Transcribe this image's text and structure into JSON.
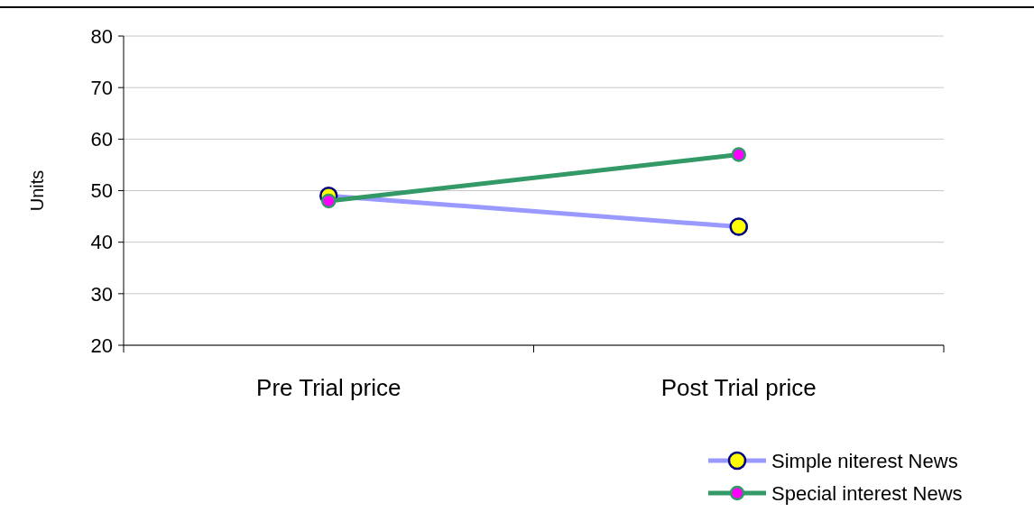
{
  "chart_data": {
    "type": "line",
    "ylabel": "Units",
    "categories": [
      "Pre Trial price",
      "Post Trial price"
    ],
    "series": [
      {
        "name": "Simple niterest News",
        "color": "#9999ff",
        "values": [
          49,
          43
        ]
      },
      {
        "name": "Special interest News",
        "color": "#339966",
        "values": [
          48,
          57
        ]
      }
    ],
    "ylim": [
      20,
      80
    ],
    "yticks": [
      20,
      30,
      40,
      50,
      60,
      70,
      80
    ],
    "grid": "y",
    "legend": "bottom right",
    "marker": "circle"
  }
}
